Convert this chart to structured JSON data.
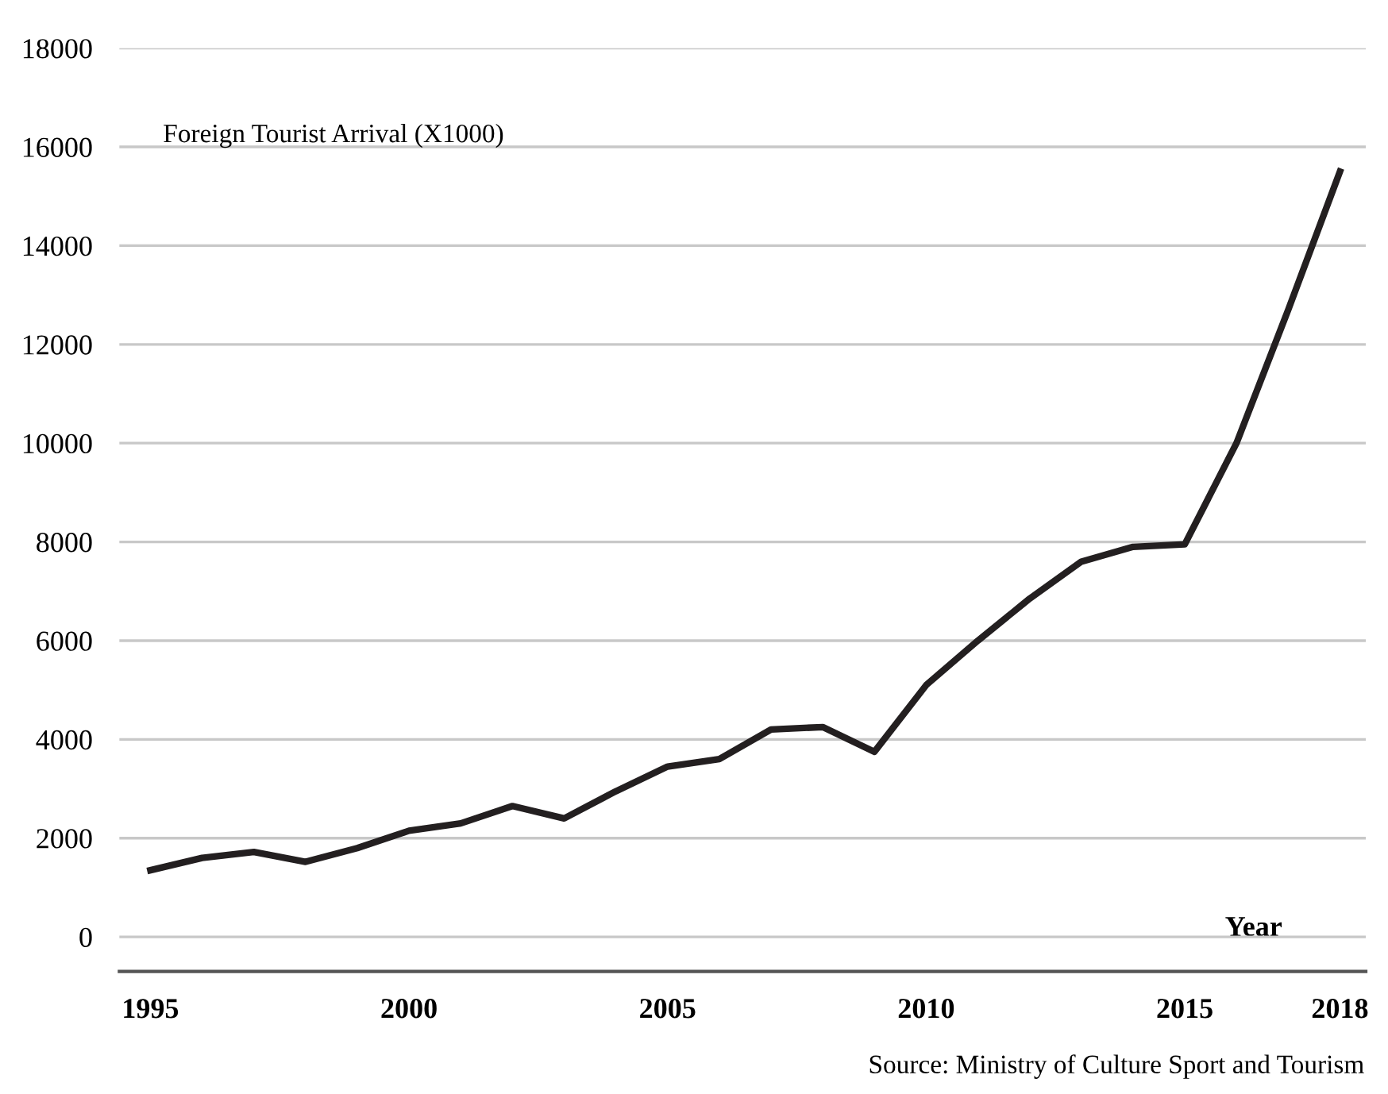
{
  "chart_data": {
    "type": "line",
    "ylabel": "Foreign Tourist Arrival (X1000)",
    "xlabel": "Year",
    "x": [
      1995,
      1996,
      1997,
      1998,
      1999,
      2000,
      2001,
      2002,
      2003,
      2004,
      2005,
      2006,
      2007,
      2008,
      2009,
      2010,
      2011,
      2012,
      2013,
      2014,
      2015,
      2016,
      2017,
      2018
    ],
    "series": [
      {
        "color": "#231f20",
        "values": [
          1350,
          1600,
          1720,
          1520,
          1800,
          2150,
          2300,
          2650,
          2400,
          2950,
          3450,
          3600,
          4200,
          4250,
          3750,
          5100,
          6000,
          6850,
          7600,
          7900,
          7950,
          10000,
          12700,
          15500
        ]
      }
    ],
    "xlim": [
      1994.4,
      2018.5
    ],
    "xticks": [
      1995,
      2000,
      2005,
      2010,
      2015,
      2018
    ],
    "ylim": [
      -700,
      18000
    ],
    "yticks": [
      0,
      2000,
      4000,
      6000,
      8000,
      10000,
      12000,
      14000,
      16000,
      18000
    ],
    "grid": "y",
    "marker": "none",
    "line_style": "solid",
    "annotations": [
      "Source: Ministry of Culture Sport and Tourism"
    ]
  }
}
